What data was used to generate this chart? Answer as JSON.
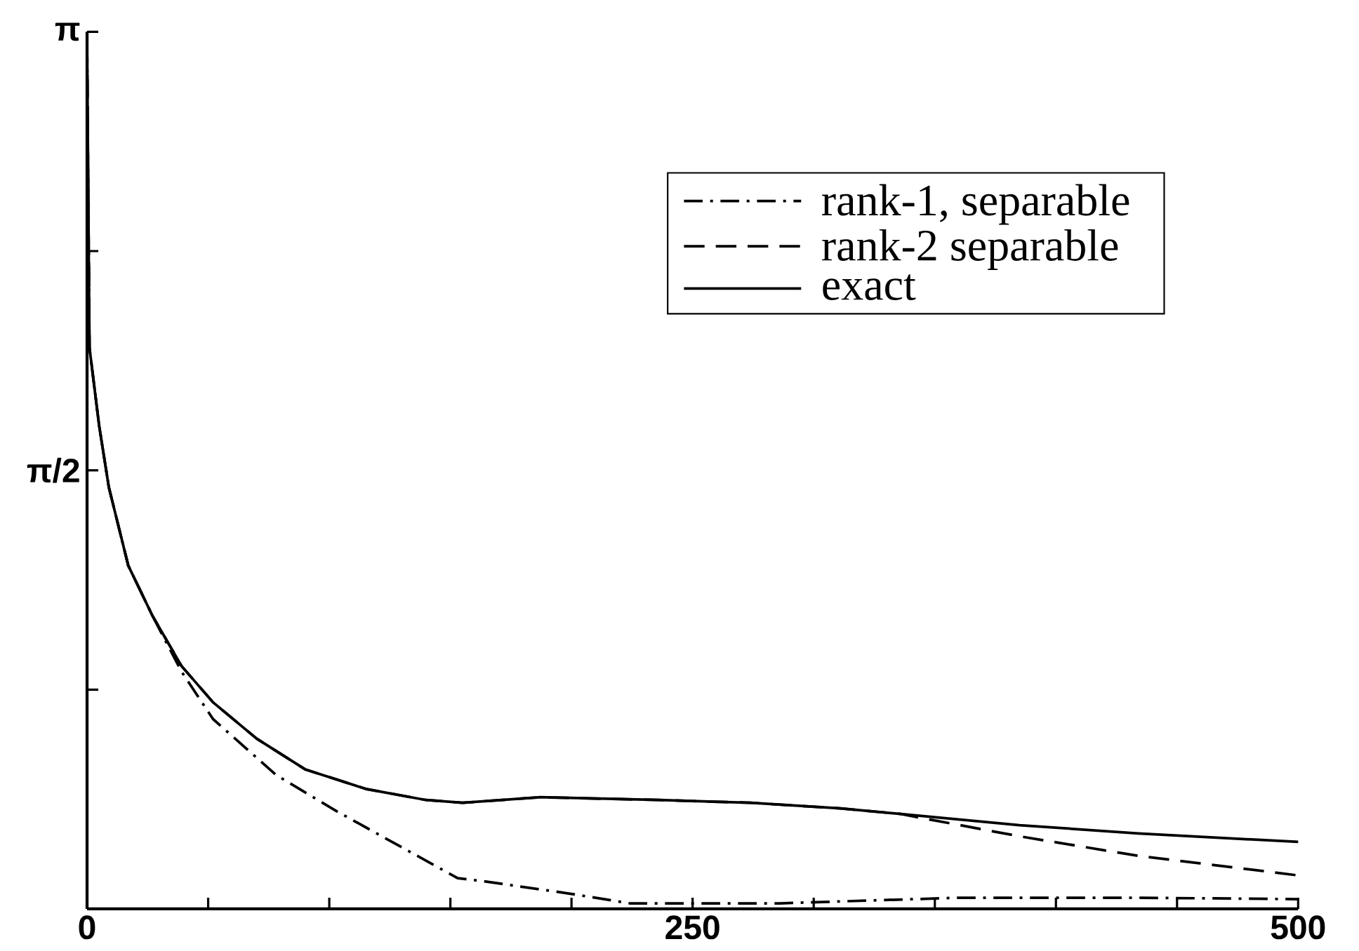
{
  "chart_data": {
    "type": "line",
    "xlim": [
      0,
      500
    ],
    "ylim": [
      0,
      3.14159
    ],
    "xticks": [
      0,
      {
        "value": 50,
        "label": null
      },
      {
        "value": 100,
        "label": null
      },
      {
        "value": 150,
        "label": null
      },
      {
        "value": 200,
        "label": null
      },
      250,
      {
        "value": 300,
        "label": null
      },
      {
        "value": 350,
        "label": null
      },
      {
        "value": 400,
        "label": null
      },
      {
        "value": 450,
        "label": null
      },
      500
    ],
    "yticks": [
      {
        "value": 0.7854,
        "label": null
      },
      {
        "value": 1.5708,
        "label": "π/2"
      },
      {
        "value": 2.3562,
        "label": null
      },
      {
        "value": 3.14159,
        "label": "π"
      }
    ],
    "legend": "top right",
    "grid": false,
    "marker": "none",
    "series": [
      {
        "name": "rank-1, separable",
        "color": "#000000",
        "line_style": "dashdot",
        "x": [
          0,
          1,
          5,
          9,
          17,
          27,
          39,
          52,
          78,
          103,
          128,
          153,
          163,
          199,
          224,
          286,
          360,
          434,
          500
        ],
        "values": [
          3.1,
          2.01,
          1.73,
          1.51,
          1.23,
          1.05,
          0.85,
          0.68,
          0.48,
          0.35,
          0.23,
          0.11,
          0.1,
          0.055,
          0.02,
          0.02,
          0.04,
          0.04,
          0.035
        ]
      },
      {
        "name": "rank-2 separable",
        "color": "#000000",
        "line_style": "dashed",
        "x": [
          0,
          1,
          5,
          9,
          17,
          27,
          39,
          52,
          70,
          90,
          115,
          140,
          155,
          187,
          236,
          274,
          311,
          336,
          348,
          385,
          434,
          500
        ],
        "values": [
          3.1,
          2.01,
          1.73,
          1.51,
          1.23,
          1.05,
          0.87,
          0.74,
          0.61,
          0.5,
          0.43,
          0.39,
          0.38,
          0.4,
          0.39,
          0.38,
          0.36,
          0.34,
          0.32,
          0.26,
          0.19,
          0.12
        ]
      },
      {
        "name": "exact",
        "color": "#000000",
        "line_style": "solid",
        "x": [
          0,
          1,
          5,
          9,
          17,
          27,
          39,
          52,
          70,
          90,
          115,
          140,
          155,
          187,
          236,
          274,
          311,
          336,
          385,
          434,
          500
        ],
        "values": [
          3.1,
          2.01,
          1.73,
          1.51,
          1.23,
          1.05,
          0.87,
          0.74,
          0.61,
          0.5,
          0.43,
          0.39,
          0.38,
          0.4,
          0.39,
          0.38,
          0.36,
          0.34,
          0.3,
          0.27,
          0.24
        ]
      }
    ]
  }
}
